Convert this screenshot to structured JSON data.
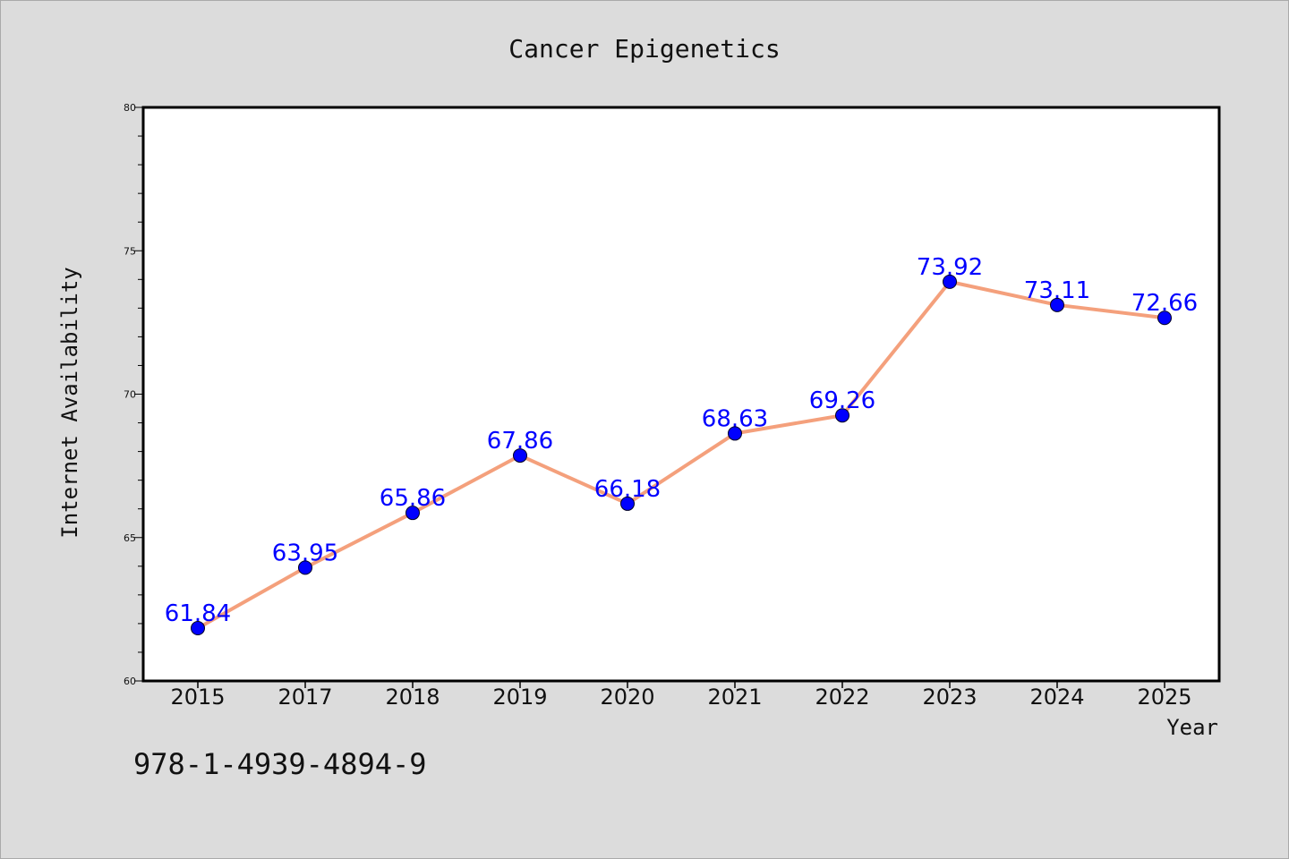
{
  "chart_data": {
    "type": "line",
    "title": "Cancer Epigenetics",
    "xlabel": "Year",
    "ylabel": "Internet Availability",
    "categories": [
      "2015",
      "2017",
      "2018",
      "2019",
      "2020",
      "2021",
      "2022",
      "2023",
      "2024",
      "2025"
    ],
    "series": [
      {
        "values": [
          61.84,
          63.95,
          65.86,
          67.86,
          66.18,
          68.63,
          69.26,
          73.92,
          73.11,
          72.66
        ]
      }
    ],
    "data_labels": [
      "61.84",
      "63.95",
      "65.86",
      "67.86",
      "66.18",
      "68.63",
      "69.26",
      "73.92",
      "73.11",
      "72.66"
    ],
    "ylim": [
      60,
      80
    ],
    "yticks": [
      "60",
      "65",
      "70",
      "75",
      "80"
    ],
    "grid": false,
    "legend": "none",
    "colors": {
      "line": "#f4a07c",
      "marker": "#0000ff",
      "data_label": "#0000ff",
      "plot_background": "#ffffff",
      "figure_background": "#dcdcdc"
    }
  },
  "footnote": "978-1-4939-4894-9"
}
